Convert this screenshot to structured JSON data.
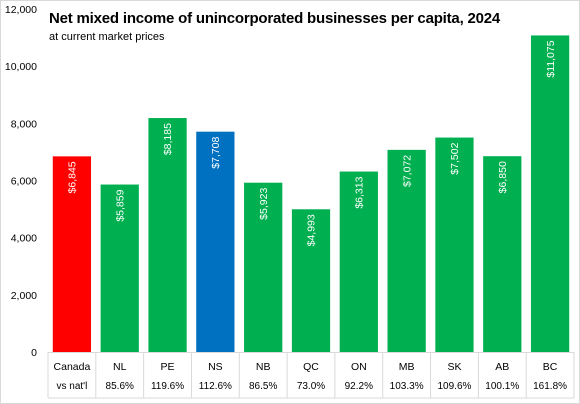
{
  "chart_data": {
    "type": "bar",
    "title": "Net mixed income of unincorporated businesses per capita, 2024",
    "subtitle": "at current market prices",
    "categories": [
      "Canada",
      "NL",
      "PE",
      "NS",
      "NB",
      "QC",
      "ON",
      "MB",
      "SK",
      "AB",
      "BC"
    ],
    "values": [
      6845,
      5859,
      8185,
      7708,
      5923,
      4993,
      6313,
      7072,
      7502,
      6850,
      11075
    ],
    "data_labels": [
      "$6,845",
      "$5,859",
      "$8,185",
      "$7,708",
      "$5,923",
      "$4,993",
      "$6,313",
      "$7,072",
      "$7,502",
      "$6,850",
      "$11,075"
    ],
    "colors": [
      "#ff0000",
      "#00b050",
      "#00b050",
      "#0070c0",
      "#00b050",
      "#00b050",
      "#00b050",
      "#00b050",
      "#00b050",
      "#00b050",
      "#00b050"
    ],
    "ylim": [
      0,
      12000
    ],
    "yticks": [
      0,
      2000,
      4000,
      6000,
      8000,
      10000,
      12000
    ],
    "ytick_labels": [
      "0",
      "2,000",
      "4,000",
      "6,000",
      "8,000",
      "10,000",
      "12,000"
    ],
    "table_row_label": "vs nat'l",
    "table_row_values": [
      "85.6%",
      "119.6%",
      "112.6%",
      "86.5%",
      "73.0%",
      "92.2%",
      "103.3%",
      "109.6%",
      "100.1%",
      "161.8%"
    ],
    "grid": false,
    "legend": "none"
  }
}
